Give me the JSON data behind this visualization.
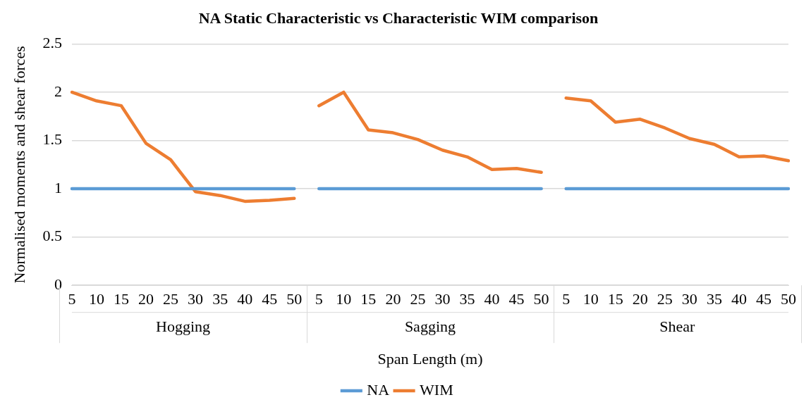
{
  "chart_data": {
    "type": "line",
    "title": "NA Static Characteristic vs Characteristic WIM comparison",
    "xlabel": "Span Length (m)",
    "ylabel": "Normalised moments and shear forces",
    "categories": [
      "5",
      "10",
      "15",
      "20",
      "25",
      "30",
      "35",
      "40",
      "45",
      "50",
      "5",
      "10",
      "15",
      "20",
      "25",
      "30",
      "35",
      "40",
      "45",
      "50",
      "5",
      "10",
      "15",
      "20",
      "25",
      "30",
      "35",
      "40",
      "45",
      "50"
    ],
    "annotations": [
      "Hogging",
      "Sagging",
      "Shear"
    ],
    "series": [
      {
        "name": "NA",
        "color": "#5b9bd5",
        "values": [
          1,
          1,
          1,
          1,
          1,
          1,
          1,
          1,
          1,
          1,
          null,
          null,
          null,
          null,
          null,
          null,
          null,
          null,
          null,
          null,
          null,
          null,
          null,
          null,
          null,
          null,
          null,
          null,
          null,
          null
        ]
      },
      {
        "name": "WIM",
        "color": "#ed7d31",
        "values": [
          2.0,
          1.91,
          1.86,
          1.47,
          1.3,
          0.97,
          0.93,
          0.87,
          0.88,
          0.9,
          null,
          null,
          null,
          null,
          null,
          null,
          null,
          null,
          null,
          null,
          null,
          null,
          null,
          null,
          null,
          null,
          null,
          null,
          null,
          null
        ]
      },
      {
        "color": "#5b9bd5",
        "values": [
          null,
          null,
          null,
          null,
          null,
          null,
          null,
          null,
          null,
          null,
          1,
          1,
          1,
          1,
          1,
          1,
          1,
          1,
          1,
          1,
          null,
          null,
          null,
          null,
          null,
          null,
          null,
          null,
          null,
          null
        ]
      },
      {
        "color": "#ed7d31",
        "values": [
          null,
          null,
          null,
          null,
          null,
          null,
          null,
          null,
          null,
          null,
          1.86,
          2.0,
          1.61,
          1.58,
          1.51,
          1.4,
          1.33,
          1.2,
          1.21,
          1.17,
          null,
          null,
          null,
          null,
          null,
          null,
          null,
          null,
          null,
          null
        ]
      },
      {
        "color": "#5b9bd5",
        "values": [
          null,
          null,
          null,
          null,
          null,
          null,
          null,
          null,
          null,
          null,
          null,
          null,
          null,
          null,
          null,
          null,
          null,
          null,
          null,
          null,
          1,
          1,
          1,
          1,
          1,
          1,
          1,
          1,
          1,
          1
        ]
      },
      {
        "color": "#ed7d31",
        "values": [
          null,
          null,
          null,
          null,
          null,
          null,
          null,
          null,
          null,
          null,
          null,
          null,
          null,
          null,
          null,
          null,
          null,
          null,
          null,
          null,
          1.94,
          1.91,
          1.69,
          1.72,
          1.63,
          1.52,
          1.46,
          1.33,
          1.34,
          1.29
        ]
      }
    ],
    "ylim": [
      0,
      2.5
    ],
    "yticks": [
      0,
      0.5,
      1,
      1.5,
      2,
      2.5
    ],
    "grid": "y",
    "legend": "bottom",
    "marker": "none",
    "line_style": "solid"
  }
}
